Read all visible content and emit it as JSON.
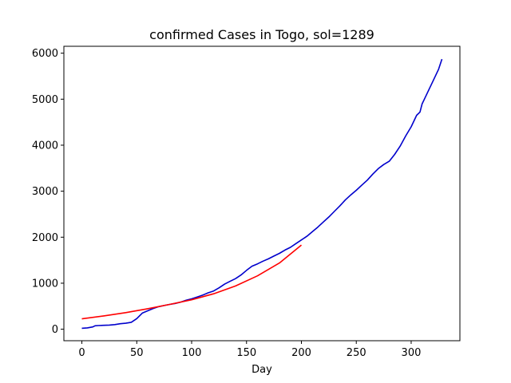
{
  "chart_data": {
    "type": "line",
    "title": "confirmed Cases in Togo, sol=1289",
    "xlabel": "Day",
    "ylabel": "",
    "xlim": [
      -16.4,
      344.4
    ],
    "ylim": [
      -250,
      6150
    ],
    "xticks": [
      0,
      50,
      100,
      150,
      200,
      250,
      300
    ],
    "yticks": [
      0,
      1000,
      2000,
      3000,
      4000,
      5000,
      6000
    ],
    "grid": false,
    "series": [
      {
        "color": "#0000cc",
        "x": [
          0,
          5,
          10,
          12,
          15,
          20,
          25,
          30,
          35,
          40,
          45,
          50,
          55,
          60,
          65,
          70,
          75,
          80,
          85,
          90,
          95,
          100,
          105,
          110,
          115,
          120,
          125,
          130,
          135,
          140,
          145,
          150,
          155,
          160,
          165,
          170,
          175,
          180,
          185,
          190,
          195,
          200,
          205,
          210,
          215,
          220,
          225,
          230,
          235,
          240,
          245,
          250,
          255,
          260,
          265,
          270,
          275,
          280,
          285,
          290,
          295,
          300,
          305,
          308,
          310,
          312,
          315,
          320,
          325,
          328
        ],
        "y": [
          20,
          30,
          50,
          75,
          80,
          85,
          90,
          100,
          120,
          130,
          150,
          230,
          350,
          400,
          450,
          490,
          515,
          540,
          560,
          590,
          630,
          660,
          700,
          740,
          790,
          830,
          900,
          980,
          1040,
          1100,
          1180,
          1280,
          1370,
          1420,
          1480,
          1530,
          1590,
          1650,
          1720,
          1780,
          1860,
          1940,
          2020,
          2120,
          2220,
          2330,
          2440,
          2560,
          2680,
          2810,
          2920,
          3020,
          3130,
          3240,
          3370,
          3490,
          3580,
          3650,
          3800,
          3980,
          4200,
          4400,
          4650,
          4720,
          4900,
          5000,
          5150,
          5400,
          5650,
          5870
        ]
      },
      {
        "color": "#ff0000",
        "x": [
          0,
          20,
          40,
          60,
          80,
          100,
          120,
          140,
          160,
          180,
          200
        ],
        "y": [
          225,
          290,
          360,
          445,
          540,
          640,
          770,
          940,
          1160,
          1440,
          1830
        ]
      }
    ]
  }
}
